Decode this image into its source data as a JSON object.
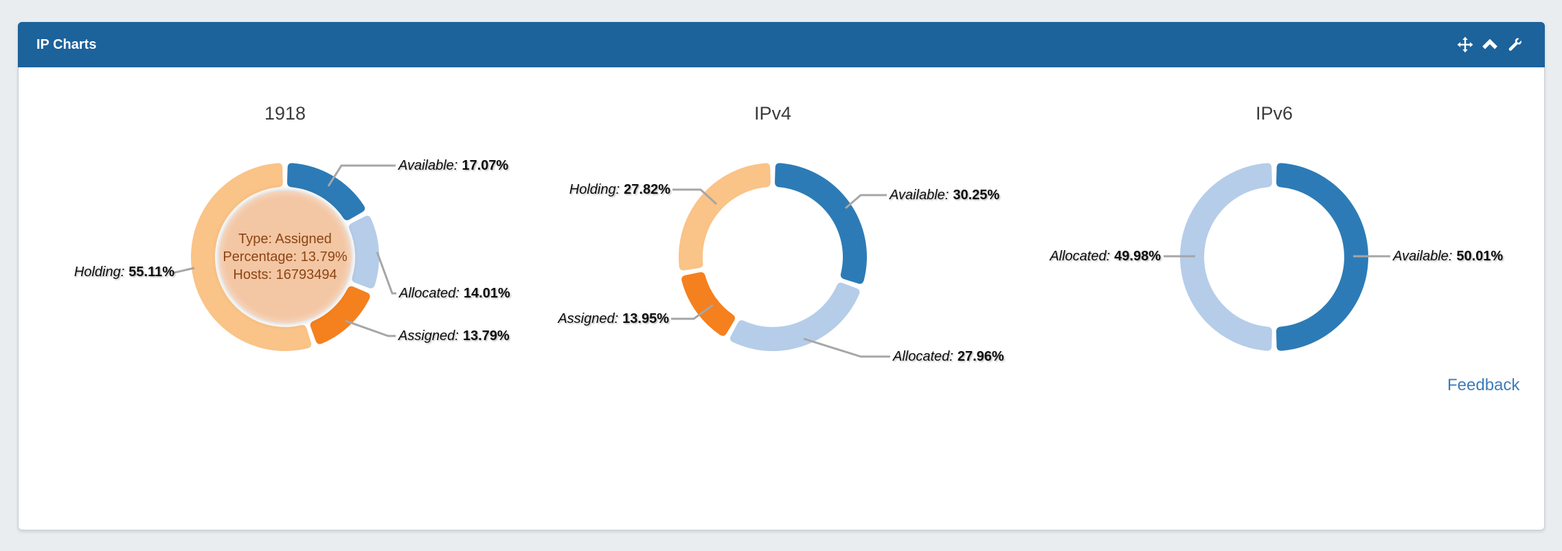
{
  "panel": {
    "title": "IP Charts",
    "icons": [
      "move-icon",
      "collapse-icon",
      "wrench-icon"
    ],
    "feedback_label": "Feedback",
    "header_color": "#1c629b"
  },
  "colors": {
    "available": "#2d7bb6",
    "allocated": "#b5cde9",
    "assigned": "#f5801e",
    "holding": "#fac387",
    "connector": "#a6a6a6",
    "tooltip_fill": "#f3c6a4",
    "tooltip_text": "#8c4513",
    "feedback_link": "#3e7cba"
  },
  "chart_data": [
    {
      "type": "pie",
      "title": "1918",
      "unit": "%",
      "slices": [
        {
          "name": "Available",
          "value": 17.07,
          "color": "#2d7bb6"
        },
        {
          "name": "Allocated",
          "value": 14.01,
          "color": "#b5cde9"
        },
        {
          "name": "Assigned",
          "value": 13.79,
          "color": "#f5801e"
        },
        {
          "name": "Holding",
          "value": 55.11,
          "color": "#fac387"
        }
      ],
      "center_tooltip": {
        "lines": [
          "Type: Assigned",
          "Percentage: 13.79%",
          "Hosts: 16793494"
        ]
      }
    },
    {
      "type": "pie",
      "title": "IPv4",
      "unit": "%",
      "slices": [
        {
          "name": "Available",
          "value": 30.25,
          "color": "#2d7bb6"
        },
        {
          "name": "Allocated",
          "value": 27.96,
          "color": "#b5cde9"
        },
        {
          "name": "Assigned",
          "value": 13.95,
          "color": "#f5801e"
        },
        {
          "name": "Holding",
          "value": 27.82,
          "color": "#fac387"
        }
      ]
    },
    {
      "type": "pie",
      "title": "IPv6",
      "unit": "%",
      "slices": [
        {
          "name": "Available",
          "value": 50.01,
          "color": "#2d7bb6"
        },
        {
          "name": "Allocated",
          "value": 49.98,
          "color": "#b5cde9"
        }
      ]
    }
  ]
}
